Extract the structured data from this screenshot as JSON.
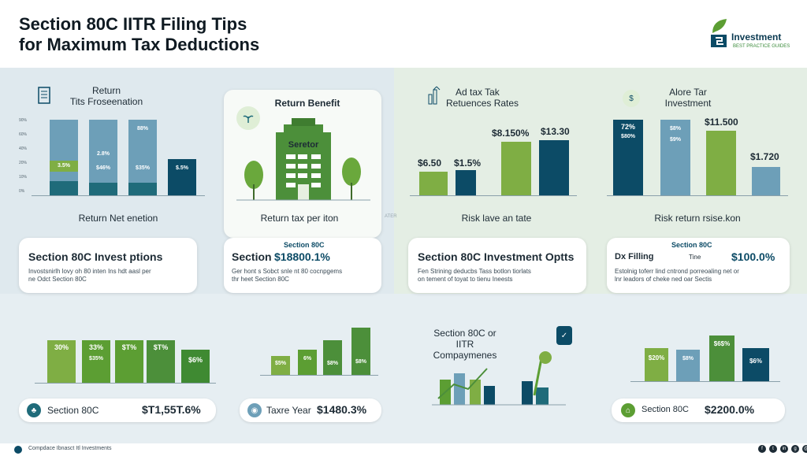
{
  "header": {
    "title_line1": "Section 80C IITR Filing Tips",
    "title_line2": "for Maximum Tax Deductions",
    "brand": "Investment",
    "brand_sub": "BEST PRACTICE GUIDES"
  },
  "panel1": {
    "heading1": "Return",
    "heading2": "Tits Froseenation",
    "axis": [
      "90%",
      "60%",
      "40%",
      "20%",
      "10%",
      "0%"
    ],
    "bar_labels": [
      "3.5%",
      "2.8%",
      "88%",
      "$46%",
      "$35%",
      "1%",
      "$.5%"
    ],
    "footer": "Return Net enetion"
  },
  "panel2": {
    "heading": "Return Benefit",
    "building_label": "Seretor",
    "footer": "Return tax per iton",
    "watermark": "ATER"
  },
  "panel3": {
    "heading1": "Ad tax Tak",
    "heading2": "Retuences Rates",
    "values": [
      "$6.50",
      "$1.5%",
      "$8.150%",
      "$13.30"
    ],
    "footer": "Risk lave an tate"
  },
  "panel4": {
    "heading1": "Alore Tar",
    "heading2": "Investment",
    "values": [
      "72%",
      "$8%",
      "$11.500",
      "$1.720"
    ],
    "inner_labels": [
      "$80%",
      "$9%",
      "$5%"
    ],
    "footer": "Risk return rsise.kon"
  },
  "cards": {
    "c1_title": "Section 80C Invest   ptions",
    "c1_line1": "Invostsnirlh lovy oh 80 inten Ins hdt   aasl per",
    "c1_line2": "ne Odct Section 80C",
    "c2_section": "Section",
    "c2_sub": "Section 80C",
    "c2_value": "$18800.1%",
    "c2_line1": "Ger hont s Sobct snle nt 80 cocnpgems",
    "c2_line2": "thr heet Section 80C",
    "c3_title": "Section 80C Investment Optts",
    "c3_line1": "Fen Strining deducbs Tass botlon tiorlats",
    "c3_line2": "on tement of toyat to tienu Ineests",
    "c4_sub": "Section 80C",
    "c4_left": "Dx Filling",
    "c4_mid": "Tine",
    "c4_value": "$100.0%",
    "c4_line1": "Estolnig toferr lind cntrond porreoaling net or",
    "c4_line2": "lnr leadors of cheke ned oar Sectis"
  },
  "bottom": {
    "b1_values": [
      "30%",
      "33%",
      "$T%",
      "$T%",
      "$6%"
    ],
    "b1_sub": [
      "",
      "$35%",
      "",
      "",
      ""
    ],
    "b1_label": "Section 80C",
    "b1_value": "$T1,55T.6%",
    "b2_values": [
      "$5%",
      "6%",
      "$8%",
      "$8%"
    ],
    "b2_label": "Taxre Year",
    "b2_value": "$1480.3%",
    "b3_heading1": "Section 80C or IITR",
    "b3_heading2": "Compaymenes",
    "b4_values": [
      "$20%",
      "$8%",
      "$6$%",
      "$6%"
    ],
    "b4_label": "Section 80C",
    "b4_value": "$2200.0%"
  },
  "footer": {
    "text": "Compdace Ibnasct Itl Investments"
  }
}
